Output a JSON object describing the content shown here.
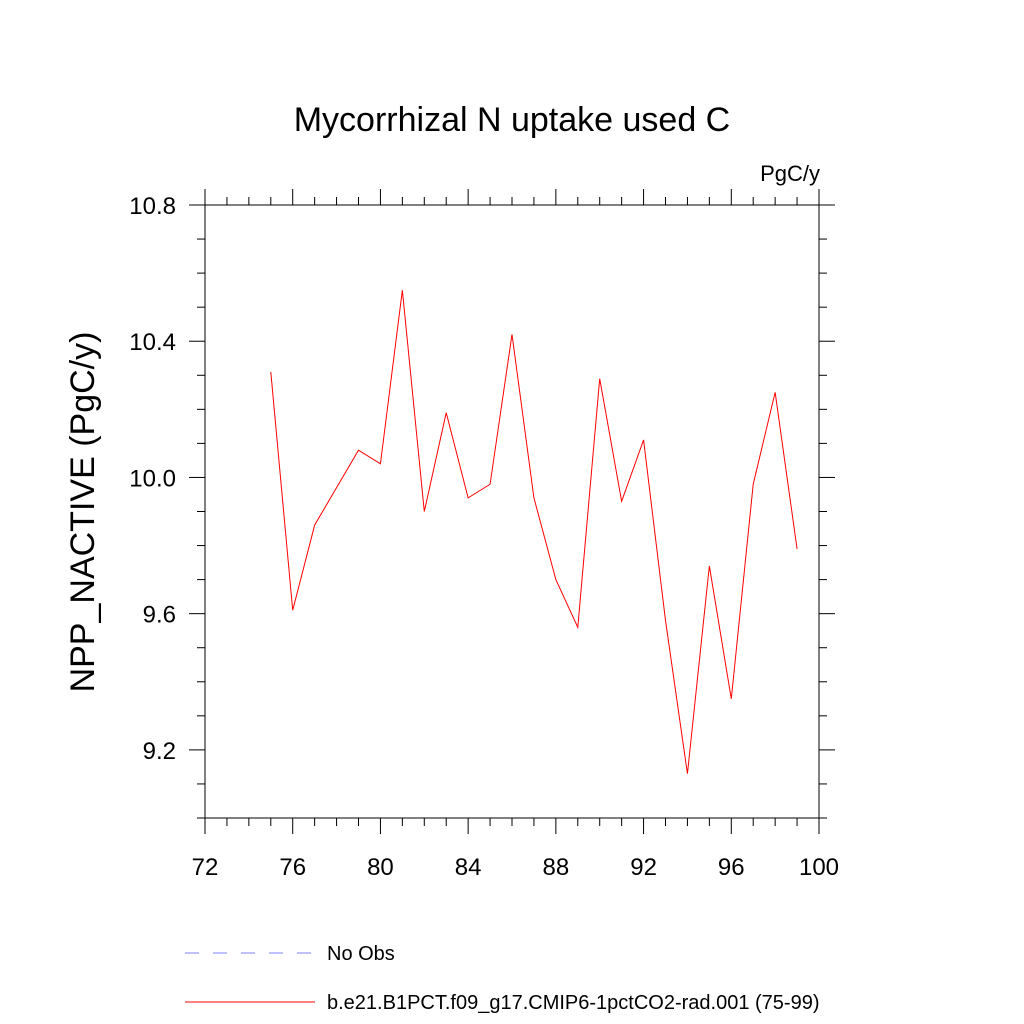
{
  "chart_data": {
    "type": "line",
    "title": "Mycorrhizal N uptake used C",
    "units_label": "PgC/y",
    "ylabel": "NPP_NACTIVE  (PgC/y)",
    "xlabel": "",
    "xlim": [
      72,
      100
    ],
    "ylim": [
      9.0,
      10.8
    ],
    "x_ticks": [
      72,
      76,
      80,
      84,
      88,
      92,
      96,
      100
    ],
    "x_tick_labels": [
      "72",
      "76",
      "80",
      "84",
      "88",
      "92",
      "96",
      "100"
    ],
    "x_minor_step": 1,
    "y_ticks": [
      9.2,
      9.6,
      10.0,
      10.4,
      10.8
    ],
    "y_tick_labels": [
      "9.2",
      "9.6",
      "10.0",
      "10.4",
      "10.8"
    ],
    "y_minor_step": 0.1,
    "grid": false,
    "legend_position": "bottom-left",
    "series": [
      {
        "name": "b.e21.B1PCT.f09_g17.CMIP6-1pctCO2-rad.001 (75-99)",
        "color": "#ff0000",
        "style": "solid",
        "x": [
          75,
          76,
          77,
          78,
          79,
          80,
          81,
          82,
          83,
          84,
          85,
          86,
          87,
          88,
          89,
          90,
          91,
          92,
          93,
          94,
          95,
          96,
          97,
          98,
          99
        ],
        "y": [
          10.31,
          9.61,
          9.86,
          9.97,
          10.08,
          10.04,
          10.55,
          9.9,
          10.19,
          9.94,
          9.98,
          10.42,
          9.94,
          9.7,
          9.56,
          10.29,
          9.93,
          10.11,
          9.58,
          9.13,
          9.74,
          9.35,
          9.98,
          10.25,
          9.79
        ]
      }
    ],
    "legend": [
      {
        "label": "No Obs",
        "color": "#8080ff",
        "style": "dashed"
      },
      {
        "label": "b.e21.B1PCT.f09_g17.CMIP6-1pctCO2-rad.001 (75-99)",
        "color": "#ff0000",
        "style": "solid"
      }
    ]
  }
}
